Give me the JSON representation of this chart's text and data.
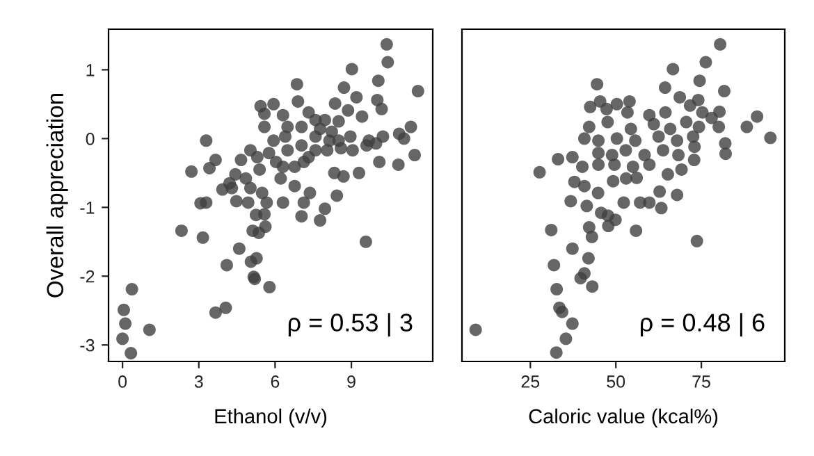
{
  "chart_data": [
    {
      "type": "scatter",
      "ylabel": "Overall appreciation",
      "xlabel": "Ethanol (v/v)",
      "xlim": [
        -0.55,
        12.2
      ],
      "xticks": [
        0,
        3,
        6,
        9
      ],
      "ylim": [
        -3.24,
        1.59
      ],
      "yticks": [
        -3,
        -2,
        -1,
        0,
        1
      ],
      "grid": false,
      "marker": "circle",
      "annotations": [
        "ρ = 0.53 | 3"
      ],
      "series": [
        {
          "color": "#404040",
          "x": [
            10.39,
            10.43,
            9.02,
            11.62,
            10.06,
            8.71,
            6.86,
            9.2,
            10.02,
            10.19,
            8.36,
            5.94,
            5.43,
            6.9,
            5.58,
            6.31,
            7.32,
            8.87,
            9.42,
            7.96,
            8.5,
            6.49,
            5.58,
            3.29,
            10.88,
            11.34,
            11.07,
            10.24,
            9.69,
            11.49,
            10.1,
            10.85,
            7.59,
            8.14,
            8.59,
            8.96,
            7.04,
            6.49,
            5.94,
            5.03,
            4.66,
            3.66,
            3.42,
            2.71,
            4.44,
            5.39,
            6.31,
            7.13,
            8.33,
            8.69,
            9.3,
            6.22,
            6.77,
            3.93,
            4.3,
            5.03,
            5.49,
            4.48,
            4.94,
            5.67,
            6.31,
            7.13,
            7.37,
            8.43,
            3.07,
            3.29,
            7.96,
            5.25,
            5.58,
            7.04,
            7.77,
            2.32,
            5.12,
            5.62,
            3.16,
            5.36,
            9.57,
            4.59,
            5.27,
            5.05,
            4.1,
            5.16,
            5.2,
            5.78,
            0.37,
            4.06,
            3.66,
            0.05,
            0.11,
            1.06,
            0,
            0.33,
            7.59,
            8.05,
            8.5,
            8.23,
            7.77,
            9.05,
            7.32,
            6.77,
            6.04,
            6.4,
            7.04,
            7.59,
            9.6,
            9.97,
            5.76,
            5.3,
            4.85,
            4.21
          ],
          "values": [
            1.37,
            1.11,
            1.01,
            0.69,
            0.84,
            0.74,
            0.79,
            0.6,
            0.56,
            0.43,
            0.51,
            0.5,
            0.47,
            0.54,
            0.36,
            0.34,
            0.38,
            0.41,
            0.32,
            0.27,
            0.25,
            0.17,
            0.17,
            -0.03,
            0.07,
            0.17,
            0,
            0.03,
            -0.03,
            -0.24,
            -0.34,
            -0.38,
            0.03,
            -0.03,
            -0.14,
            0.03,
            -0.1,
            -0.17,
            -0.03,
            -0.17,
            -0.31,
            -0.31,
            -0.43,
            -0.48,
            -0.52,
            -0.45,
            -0.41,
            -0.34,
            -0.5,
            -0.55,
            -0.5,
            -0.58,
            -0.69,
            -0.74,
            -0.72,
            -0.72,
            -0.79,
            -0.91,
            -0.93,
            -0.93,
            -0.93,
            -0.93,
            -0.79,
            -0.83,
            -0.94,
            -0.93,
            -1.02,
            -1.11,
            -1.1,
            -1.13,
            -1.19,
            -1.34,
            -1.34,
            -1.28,
            -1.44,
            -1.37,
            -1.5,
            -1.6,
            -1.74,
            -1.79,
            -1.84,
            -2.01,
            -2.04,
            -2.16,
            -2.19,
            -2.46,
            -2.53,
            -2.49,
            -2.69,
            -2.78,
            -2.91,
            -3.12,
            -0.17,
            -0.17,
            -0.03,
            0.1,
            0.14,
            -0.17,
            -0.27,
            -0.41,
            -0.34,
            0.03,
            0.17,
            0.27,
            -0.1,
            -0.07,
            -0.21,
            -0.27,
            -0.58,
            -0.65
          ]
        }
      ]
    },
    {
      "type": "scatter",
      "xlabel": "Caloric value (kcal%)",
      "xlim": [
        5,
        99.4
      ],
      "xticks": [
        25,
        50,
        75
      ],
      "ylim": [
        -3.24,
        1.59
      ],
      "tick_labels": "x",
      "grid": false,
      "marker": "circle",
      "annotations": [
        "ρ = 0.48 | 6"
      ],
      "series": [
        {
          "color": "#404040",
          "x": [
            80.5,
            76.3,
            66.7,
            74.5,
            81.7,
            64.4,
            44.5,
            68.7,
            74.1,
            45.4,
            54,
            50.3,
            42.5,
            47.3,
            53.4,
            59.8,
            64.5,
            71.7,
            75.3,
            80.3,
            78,
            91.3,
            88.3,
            95.2,
            42.2,
            47.6,
            54.4,
            61.1,
            65.9,
            70.6,
            74.3,
            80.1,
            40.8,
            44.9,
            50.3,
            55.7,
            62.5,
            67.9,
            72.6,
            82,
            82.1,
            73,
            44.9,
            48.9,
            52.9,
            58.4,
            63.8,
            68.3,
            72.9,
            33.1,
            37.3,
            27.7,
            40.2,
            44.9,
            49.6,
            55,
            59.8,
            65.2,
            69.2,
            37.9,
            40.8,
            49.2,
            53,
            56.1,
            36.8,
            41.5,
            44.8,
            52.3,
            57.1,
            59.8,
            62.8,
            67.9,
            63.3,
            45.7,
            47.7,
            49.9,
            47.8,
            31.1,
            55.9,
            42.2,
            43,
            73.7,
            37.3,
            42,
            31.9,
            40.8,
            39.7,
            43.1,
            32.7,
            33.5,
            34.3,
            37.3,
            9,
            35.4,
            32.6
          ],
          "values": [
            1.37,
            1.11,
            1.01,
            0.84,
            0.69,
            0.74,
            0.79,
            0.6,
            0.56,
            0.54,
            0.54,
            0.5,
            0.46,
            0.43,
            0.38,
            0.34,
            0.38,
            0.48,
            0.38,
            0.39,
            0.3,
            0.32,
            0.17,
            0.01,
            0.17,
            0.24,
            0.14,
            0.21,
            0.14,
            0.24,
            0.17,
            0.17,
            0,
            -0.03,
            0,
            -0.03,
            0.03,
            -0.03,
            0.03,
            -0.07,
            -0.22,
            -0.12,
            -0.21,
            -0.24,
            -0.17,
            -0.24,
            -0.17,
            -0.24,
            -0.31,
            -0.3,
            -0.27,
            -0.49,
            -0.41,
            -0.38,
            -0.38,
            -0.41,
            -0.38,
            -0.52,
            -0.45,
            -0.63,
            -0.69,
            -0.62,
            -0.58,
            -0.57,
            -0.91,
            -0.98,
            -0.79,
            -0.93,
            -0.93,
            -0.93,
            -0.77,
            -0.82,
            -1.01,
            -1.08,
            -1.12,
            -1.18,
            -1.27,
            -1.33,
            -1.34,
            -1.29,
            -1.43,
            -1.49,
            -1.6,
            -1.74,
            -1.84,
            -1.96,
            -2.03,
            -2.15,
            -2.19,
            -2.46,
            -2.52,
            -2.69,
            -2.78,
            -2.91,
            -3.11
          ]
        }
      ]
    }
  ]
}
